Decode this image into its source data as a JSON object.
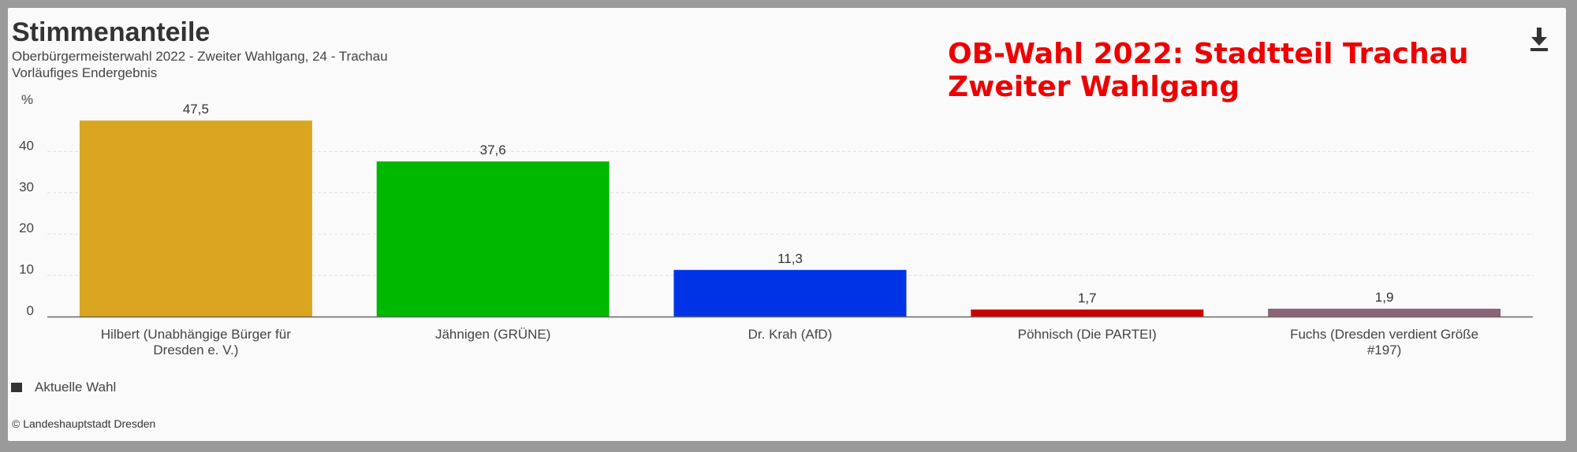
{
  "header": {
    "title": "Stimmenanteile",
    "subtitle_line1": "Oberbürgermeisterwahl 2022 - Zweiter Wahlgang, 24 - Trachau",
    "subtitle_line2": "Vorläufiges Endergebnis",
    "overlay_line1": "OB-Wahl 2022: Stadtteil Trachau",
    "overlay_line2": "Zweiter Wahlgang",
    "download_icon": "download-icon"
  },
  "legend": {
    "label": "Aktuelle Wahl",
    "color": "#333333"
  },
  "credits": "© Landeshauptstadt Dresden",
  "colors": {
    "overlay_text": "#ee0000"
  },
  "chart_data": {
    "type": "bar",
    "y_unit_label": "%",
    "ylim": [
      0,
      50
    ],
    "yticks": [
      0,
      10,
      20,
      30,
      40
    ],
    "grid": true,
    "legend_position": "bottom-left",
    "categories": [
      [
        "Hilbert (Unabhängige Bürger für",
        "Dresden e. V.)"
      ],
      [
        "Jähnigen (GRÜNE)"
      ],
      [
        "Dr. Krah (AfD)"
      ],
      [
        "Pöhnisch (Die PARTEI)"
      ],
      [
        "Fuchs (Dresden verdient Größe",
        "#197)"
      ]
    ],
    "values": [
      47.5,
      37.6,
      11.3,
      1.7,
      1.9
    ],
    "value_labels": [
      "47,5",
      "37,6",
      "11,3",
      "1,7",
      "1,9"
    ],
    "colors": [
      "#daa520",
      "#00b800",
      "#0033e6",
      "#cc0000",
      "#8c6478"
    ],
    "series": [
      {
        "name": "Aktuelle Wahl",
        "values": [
          47.5,
          37.6,
          11.3,
          1.7,
          1.9
        ]
      }
    ]
  }
}
